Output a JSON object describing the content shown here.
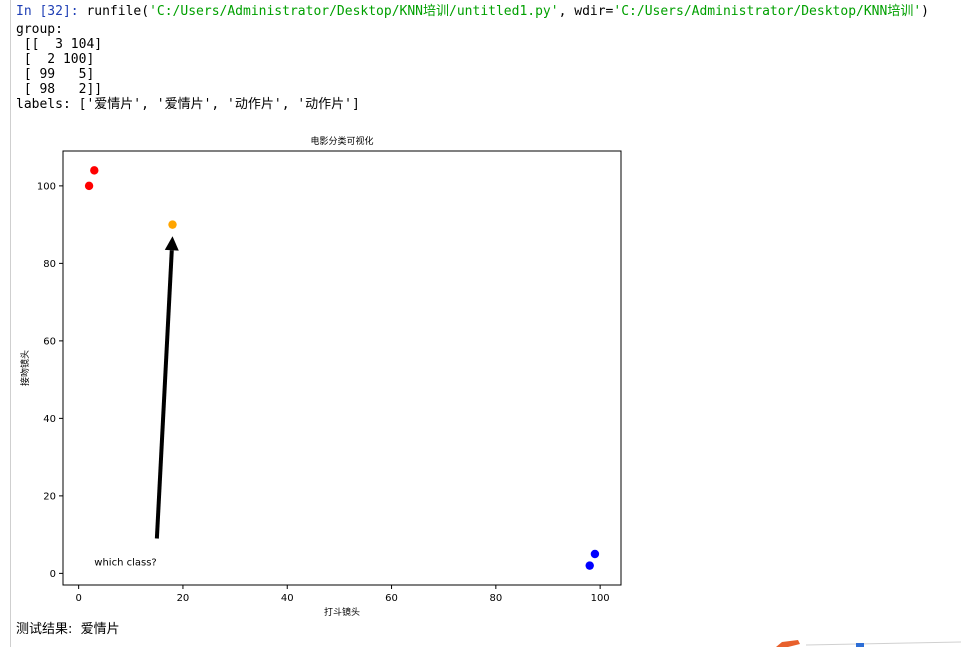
{
  "console": {
    "prompt": "In [32]:",
    "command_name": "runfile(",
    "command_path": "'C:/Users/Administrator/Desktop/KNN培训/untitled1.py'",
    "command_sep": ", wdir=",
    "command_wdir": "'C:/Users/Administrator/Desktop/KNN培训'",
    "command_close": ")",
    "output_lines": [
      "group:",
      " [[  3 104]",
      " [  2 100]",
      " [ 99   5]",
      " [ 98   2]]",
      "labels: ['爱情片', '爱情片', '动作片', '动作片']"
    ],
    "result_label": "测试结果:",
    "result_value": "爱情片"
  },
  "chart_data": {
    "type": "scatter",
    "title": "电影分类可视化",
    "xlabel": "打斗镜头",
    "ylabel": "接吻镜头",
    "xlim": [
      -3,
      104
    ],
    "ylim": [
      -3,
      109
    ],
    "xticks": [
      0,
      20,
      40,
      60,
      80,
      100
    ],
    "yticks": [
      0,
      20,
      40,
      60,
      80,
      100
    ],
    "grid": false,
    "series": [
      {
        "color": "#ff0000",
        "points": [
          [
            3,
            104
          ],
          [
            2,
            100
          ]
        ]
      },
      {
        "color": "#0000ff",
        "points": [
          [
            99,
            5
          ],
          [
            98,
            2
          ]
        ]
      },
      {
        "color": "#ffa500",
        "points": [
          [
            18,
            90
          ]
        ]
      }
    ],
    "annotation": {
      "text": "which class?",
      "text_at": [
        3,
        2
      ],
      "arrow_from": [
        15,
        9
      ],
      "arrow_to": [
        18,
        87
      ]
    }
  },
  "colors": {
    "prompt": "#1f3fb5",
    "string": "#00a000"
  }
}
